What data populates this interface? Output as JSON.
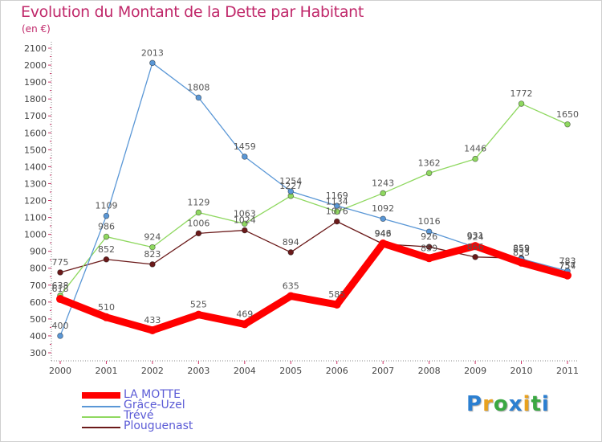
{
  "title": "Evolution du Montant de la Dette par Habitant",
  "unit_label": "(en €)",
  "logo": {
    "text": "Proxiti",
    "letter_colors": [
      "#2b7fd1",
      "#e8a11e",
      "#3aa842",
      "#2b7fd1",
      "#e8a11e",
      "#3aa842",
      "#2b7fd1"
    ]
  },
  "chart_data": {
    "type": "line",
    "title": "Evolution du Montant de la Dette par Habitant",
    "ylabel": "(en €)",
    "xlabel": "",
    "x": [
      "2000",
      "2001",
      "2002",
      "2003",
      "2004",
      "2005",
      "2006",
      "2007",
      "2008",
      "2009",
      "2010",
      "2011"
    ],
    "ylim": [
      300,
      2100
    ],
    "yticks": [
      300,
      400,
      500,
      600,
      700,
      800,
      900,
      1000,
      1100,
      1200,
      1300,
      1400,
      1500,
      1600,
      1700,
      1800,
      1900,
      2000,
      2100
    ],
    "grid": false,
    "legend_position": "bottom-left",
    "series": [
      {
        "name": "Plouguenast",
        "color": "#6b1a1a",
        "values": [
          775,
          852,
          823,
          1006,
          1024,
          894,
          1076,
          943,
          926,
          866,
          859,
          754
        ],
        "labels": [
          "775",
          "852",
          "823",
          "1006",
          "1024",
          "894",
          "1076",
          "943",
          "926",
          "866",
          "859",
          "754"
        ]
      },
      {
        "name": "Trévé",
        "color": "#8fd860",
        "values": [
          638,
          986,
          924,
          1129,
          1063,
          1227,
          1134,
          1243,
          1362,
          1446,
          1772,
          1650
        ],
        "labels": [
          "638",
          "986",
          "924",
          "1129",
          "1063",
          "1227",
          "1134",
          "1243",
          "1362",
          "1446",
          "1772",
          "1650"
        ]
      },
      {
        "name": "Grâce-Uzel",
        "color": "#5a97d6",
        "values": [
          400,
          1109,
          2013,
          1808,
          1459,
          1254,
          1169,
          1092,
          1016,
          924,
          855,
          783
        ],
        "labels": [
          "400",
          "1109",
          "2013",
          "1808",
          "1459",
          "1254",
          "1169",
          "1092",
          "1016",
          "924",
          "855",
          "783"
        ]
      },
      {
        "name": "LA MOTTE",
        "color": "#ff0000",
        "values": [
          618,
          510,
          433,
          525,
          469,
          635,
          585,
          946,
          859,
          931,
          833,
          757
        ],
        "labels": [
          "618",
          "510",
          "433",
          "525",
          "469",
          "635",
          "585",
          "946",
          "859",
          "931",
          "833",
          "757"
        ]
      }
    ]
  },
  "legend": [
    {
      "name": "LA MOTTE",
      "color": "#ff0000"
    },
    {
      "name": "Grâce-Uzel",
      "color": "#5a97d6"
    },
    {
      "name": "Trévé",
      "color": "#8fd860"
    },
    {
      "name": "Plouguenast",
      "color": "#6b1a1a"
    }
  ]
}
